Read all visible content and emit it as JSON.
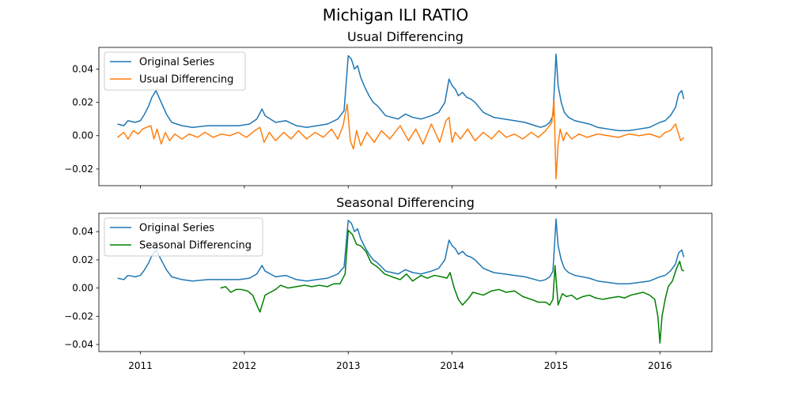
{
  "figure": {
    "suptitle": "Michigan ILI RATIO"
  },
  "colors": {
    "original": "#1f77b4",
    "usual": "#ff7f0e",
    "seasonal": "#008000"
  },
  "chart_data": [
    {
      "type": "line",
      "title": "Usual Differencing",
      "xlabel": "",
      "ylabel": "",
      "xlim": [
        2010.6,
        2016.5
      ],
      "ylim": [
        -0.03,
        0.053
      ],
      "xticks": [
        "2011",
        "2012",
        "2013",
        "2014",
        "2015",
        "2016"
      ],
      "yticks": [
        "0.04",
        "0.02",
        "0.00",
        "−0.02"
      ],
      "legend": {
        "position": "top-left",
        "entries": [
          "Original Series",
          "Usual Differencing"
        ]
      },
      "series": [
        {
          "name": "Original Series",
          "x": [
            2010.78,
            2010.84,
            2010.88,
            2010.95,
            2011.0,
            2011.04,
            2011.08,
            2011.11,
            2011.15,
            2011.2,
            2011.25,
            2011.3,
            2011.4,
            2011.5,
            2011.65,
            2011.8,
            2011.95,
            2012.05,
            2012.12,
            2012.17,
            2012.2,
            2012.3,
            2012.4,
            2012.5,
            2012.6,
            2012.7,
            2012.8,
            2012.9,
            2012.96,
            2013.0,
            2013.03,
            2013.06,
            2013.09,
            2013.12,
            2013.16,
            2013.2,
            2013.24,
            2013.28,
            2013.32,
            2013.36,
            2013.42,
            2013.48,
            2013.55,
            2013.62,
            2013.7,
            2013.75,
            2013.8,
            2013.87,
            2013.93,
            2013.97,
            2014.0,
            2014.03,
            2014.06,
            2014.1,
            2014.14,
            2014.18,
            2014.22,
            2014.3,
            2014.4,
            2014.5,
            2014.6,
            2014.7,
            2014.8,
            2014.85,
            2014.9,
            2014.94,
            2014.97,
            2015.0,
            2015.02,
            2015.05,
            2015.08,
            2015.12,
            2015.18,
            2015.25,
            2015.32,
            2015.4,
            2015.5,
            2015.6,
            2015.7,
            2015.8,
            2015.9,
            2016.0,
            2016.05,
            2016.1,
            2016.15,
            2016.18,
            2016.21,
            2016.23
          ],
          "y": [
            0.007,
            0.006,
            0.009,
            0.008,
            0.009,
            0.013,
            0.018,
            0.023,
            0.027,
            0.02,
            0.013,
            0.008,
            0.006,
            0.005,
            0.006,
            0.006,
            0.006,
            0.007,
            0.01,
            0.016,
            0.012,
            0.008,
            0.009,
            0.006,
            0.005,
            0.006,
            0.007,
            0.01,
            0.015,
            0.048,
            0.046,
            0.04,
            0.042,
            0.035,
            0.029,
            0.024,
            0.02,
            0.018,
            0.015,
            0.012,
            0.011,
            0.01,
            0.013,
            0.011,
            0.01,
            0.011,
            0.012,
            0.014,
            0.02,
            0.034,
            0.03,
            0.028,
            0.024,
            0.026,
            0.023,
            0.022,
            0.02,
            0.014,
            0.011,
            0.01,
            0.009,
            0.008,
            0.006,
            0.005,
            0.006,
            0.008,
            0.012,
            0.049,
            0.03,
            0.02,
            0.014,
            0.011,
            0.009,
            0.008,
            0.007,
            0.005,
            0.004,
            0.003,
            0.003,
            0.004,
            0.005,
            0.008,
            0.009,
            0.012,
            0.017,
            0.025,
            0.027,
            0.022
          ]
        },
        {
          "name": "Usual Differencing",
          "x": [
            2010.78,
            2010.84,
            2010.88,
            2010.93,
            2010.98,
            2011.02,
            2011.06,
            2011.1,
            2011.13,
            2011.16,
            2011.2,
            2011.24,
            2011.28,
            2011.33,
            2011.4,
            2011.47,
            2011.55,
            2011.62,
            2011.7,
            2011.78,
            2011.86,
            2011.94,
            2012.02,
            2012.1,
            2012.15,
            2012.19,
            2012.24,
            2012.3,
            2012.38,
            2012.45,
            2012.52,
            2012.6,
            2012.68,
            2012.76,
            2012.84,
            2012.9,
            2012.95,
            2012.99,
            2013.02,
            2013.05,
            2013.08,
            2013.12,
            2013.18,
            2013.25,
            2013.32,
            2013.4,
            2013.5,
            2013.58,
            2013.65,
            2013.72,
            2013.8,
            2013.88,
            2013.94,
            2013.97,
            2014.0,
            2014.03,
            2014.08,
            2014.15,
            2014.22,
            2014.3,
            2014.38,
            2014.45,
            2014.52,
            2014.6,
            2014.68,
            2014.76,
            2014.83,
            2014.9,
            2014.96,
            2014.98,
            2015.0,
            2015.02,
            2015.04,
            2015.07,
            2015.1,
            2015.15,
            2015.22,
            2015.3,
            2015.4,
            2015.5,
            2015.6,
            2015.7,
            2015.8,
            2015.9,
            2016.0,
            2016.05,
            2016.1,
            2016.15,
            2016.2,
            2016.23
          ],
          "y": [
            -0.001,
            0.002,
            -0.002,
            0.003,
            0.001,
            0.004,
            0.005,
            0.006,
            -0.002,
            0.004,
            -0.005,
            0.002,
            -0.003,
            0.001,
            -0.002,
            0.001,
            -0.001,
            0.002,
            -0.001,
            0.001,
            0.0,
            0.002,
            -0.001,
            0.003,
            0.005,
            -0.004,
            0.002,
            -0.003,
            0.002,
            -0.002,
            0.003,
            -0.002,
            0.002,
            -0.001,
            0.004,
            -0.002,
            0.006,
            0.019,
            -0.003,
            -0.008,
            0.003,
            -0.006,
            0.002,
            -0.004,
            0.003,
            -0.002,
            0.006,
            -0.003,
            0.004,
            -0.005,
            0.007,
            -0.004,
            0.009,
            0.011,
            -0.004,
            0.002,
            -0.002,
            0.004,
            -0.003,
            0.002,
            -0.002,
            0.003,
            -0.001,
            0.001,
            -0.002,
            0.002,
            -0.001,
            0.003,
            0.008,
            0.021,
            -0.026,
            -0.005,
            0.004,
            -0.003,
            0.002,
            -0.002,
            0.001,
            -0.001,
            0.001,
            0.0,
            -0.001,
            0.001,
            0.0,
            0.001,
            -0.001,
            0.002,
            0.003,
            0.007,
            -0.003,
            -0.001
          ]
        }
      ]
    },
    {
      "type": "line",
      "title": "Seasonal Differencing",
      "xlabel": "",
      "ylabel": "",
      "xlim": [
        2010.6,
        2016.5
      ],
      "ylim": [
        -0.045,
        0.053
      ],
      "xticks": [
        "2011",
        "2012",
        "2013",
        "2014",
        "2015",
        "2016"
      ],
      "yticks": [
        "0.04",
        "0.02",
        "0.00",
        "−0.02",
        "−0.04"
      ],
      "legend": {
        "position": "top-left",
        "entries": [
          "Original Series",
          "Seasonal Differencing"
        ]
      },
      "series": [
        {
          "name": "Original Series",
          "x": [
            2010.78,
            2010.84,
            2010.88,
            2010.95,
            2011.0,
            2011.04,
            2011.08,
            2011.11,
            2011.15,
            2011.2,
            2011.25,
            2011.3,
            2011.4,
            2011.5,
            2011.65,
            2011.8,
            2011.95,
            2012.05,
            2012.12,
            2012.17,
            2012.2,
            2012.3,
            2012.4,
            2012.5,
            2012.6,
            2012.7,
            2012.8,
            2012.9,
            2012.96,
            2013.0,
            2013.03,
            2013.06,
            2013.09,
            2013.12,
            2013.16,
            2013.2,
            2013.24,
            2013.28,
            2013.32,
            2013.36,
            2013.42,
            2013.48,
            2013.55,
            2013.62,
            2013.7,
            2013.75,
            2013.8,
            2013.87,
            2013.93,
            2013.97,
            2014.0,
            2014.03,
            2014.06,
            2014.1,
            2014.14,
            2014.18,
            2014.22,
            2014.3,
            2014.4,
            2014.5,
            2014.6,
            2014.7,
            2014.8,
            2014.85,
            2014.9,
            2014.94,
            2014.97,
            2015.0,
            2015.02,
            2015.05,
            2015.08,
            2015.12,
            2015.18,
            2015.25,
            2015.32,
            2015.4,
            2015.5,
            2015.6,
            2015.7,
            2015.8,
            2015.9,
            2016.0,
            2016.05,
            2016.1,
            2016.15,
            2016.18,
            2016.21,
            2016.23
          ],
          "y": [
            0.007,
            0.006,
            0.009,
            0.008,
            0.009,
            0.013,
            0.018,
            0.023,
            0.027,
            0.02,
            0.013,
            0.008,
            0.006,
            0.005,
            0.006,
            0.006,
            0.006,
            0.007,
            0.01,
            0.016,
            0.012,
            0.008,
            0.009,
            0.006,
            0.005,
            0.006,
            0.007,
            0.01,
            0.015,
            0.048,
            0.046,
            0.04,
            0.042,
            0.035,
            0.029,
            0.024,
            0.02,
            0.018,
            0.015,
            0.012,
            0.011,
            0.01,
            0.013,
            0.011,
            0.01,
            0.011,
            0.012,
            0.014,
            0.02,
            0.034,
            0.03,
            0.028,
            0.024,
            0.026,
            0.023,
            0.022,
            0.02,
            0.014,
            0.011,
            0.01,
            0.009,
            0.008,
            0.006,
            0.005,
            0.006,
            0.008,
            0.012,
            0.049,
            0.03,
            0.02,
            0.014,
            0.011,
            0.009,
            0.008,
            0.007,
            0.005,
            0.004,
            0.003,
            0.003,
            0.004,
            0.005,
            0.008,
            0.009,
            0.012,
            0.017,
            0.025,
            0.027,
            0.022
          ]
        },
        {
          "name": "Seasonal Differencing",
          "x": [
            2011.77,
            2011.82,
            2011.87,
            2011.92,
            2011.97,
            2012.03,
            2012.08,
            2012.12,
            2012.15,
            2012.2,
            2012.25,
            2012.3,
            2012.35,
            2012.42,
            2012.5,
            2012.58,
            2012.65,
            2012.72,
            2012.8,
            2012.86,
            2012.92,
            2012.97,
            2013.0,
            2013.04,
            2013.08,
            2013.12,
            2013.17,
            2013.22,
            2013.28,
            2013.35,
            2013.42,
            2013.5,
            2013.56,
            2013.62,
            2013.7,
            2013.76,
            2013.83,
            2013.9,
            2013.95,
            2013.98,
            2014.02,
            2014.06,
            2014.1,
            2014.15,
            2014.2,
            2014.25,
            2014.3,
            2014.38,
            2014.45,
            2014.52,
            2014.6,
            2014.68,
            2014.76,
            2014.83,
            2014.9,
            2014.94,
            2014.97,
            2014.99,
            2015.02,
            2015.06,
            2015.1,
            2015.15,
            2015.2,
            2015.26,
            2015.32,
            2015.38,
            2015.45,
            2015.52,
            2015.6,
            2015.66,
            2015.72,
            2015.78,
            2015.84,
            2015.9,
            2015.95,
            2015.98,
            2016.0,
            2016.02,
            2016.05,
            2016.08,
            2016.12,
            2016.16,
            2016.19,
            2016.21,
            2016.23
          ],
          "y": [
            0.0,
            0.001,
            -0.003,
            -0.001,
            -0.001,
            -0.002,
            -0.005,
            -0.012,
            -0.017,
            -0.005,
            -0.003,
            -0.001,
            0.002,
            0.0,
            0.001,
            0.002,
            0.001,
            0.002,
            0.001,
            0.003,
            0.003,
            0.01,
            0.041,
            0.038,
            0.031,
            0.03,
            0.026,
            0.018,
            0.015,
            0.01,
            0.008,
            0.006,
            0.01,
            0.005,
            0.009,
            0.007,
            0.009,
            0.008,
            0.007,
            0.011,
            0.0,
            -0.008,
            -0.012,
            -0.008,
            -0.003,
            -0.004,
            -0.005,
            -0.002,
            -0.001,
            -0.003,
            -0.002,
            -0.006,
            -0.008,
            -0.01,
            -0.01,
            -0.012,
            -0.008,
            0.016,
            -0.012,
            -0.004,
            -0.006,
            -0.005,
            -0.008,
            -0.006,
            -0.005,
            -0.007,
            -0.008,
            -0.007,
            -0.006,
            -0.007,
            -0.005,
            -0.004,
            -0.003,
            -0.005,
            -0.008,
            -0.02,
            -0.039,
            -0.02,
            -0.008,
            0.001,
            0.005,
            0.014,
            0.019,
            0.013,
            0.012
          ]
        }
      ]
    }
  ]
}
